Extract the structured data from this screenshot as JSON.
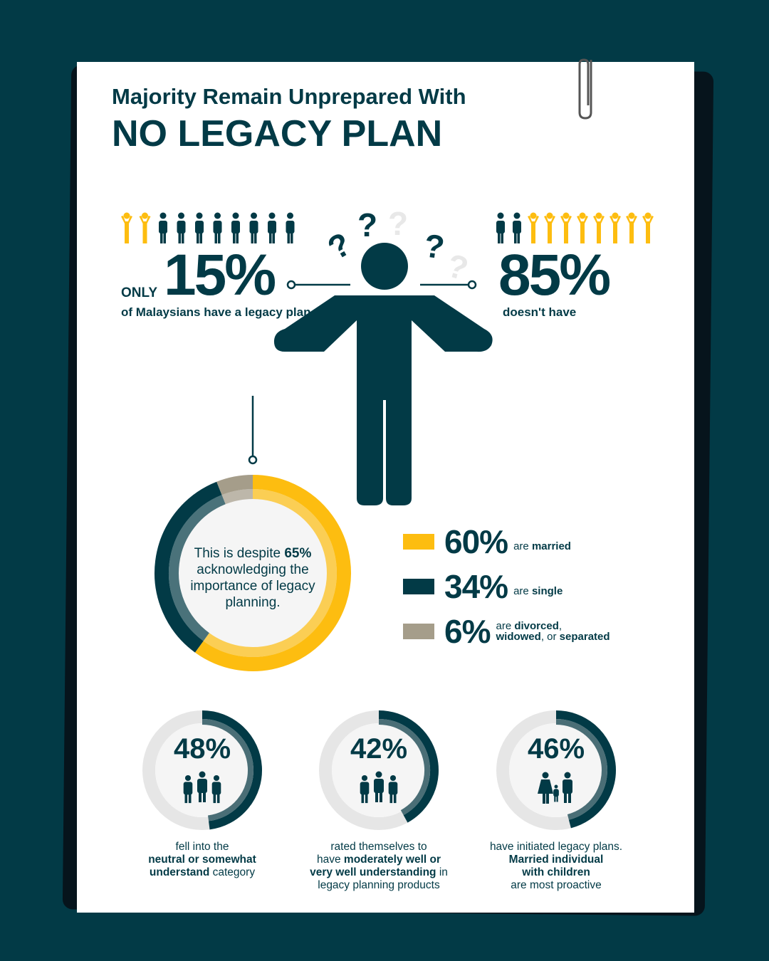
{
  "title": {
    "line1": "Majority Remain Unprepared With",
    "line2": "NO LEGACY PLAN"
  },
  "have": {
    "prefix": "ONLY",
    "value": "15%",
    "label": "of Malaysians have a legacy plan"
  },
  "dont_have": {
    "value": "85%",
    "label": "doesn't have"
  },
  "donut": {
    "text_pre": "This is despite ",
    "text_bold": "65%",
    "text_post": " acknowledging the importance of legacy planning."
  },
  "legend": [
    {
      "value": "60%",
      "pre": "are ",
      "bold": "married",
      "color": "#fdbd10"
    },
    {
      "value": "34%",
      "pre": "are ",
      "bold": "single",
      "color": "#023a46"
    },
    {
      "value": "6%",
      "pre": "are ",
      "bold": "divorced",
      "mid": ", ",
      "bold2": "widowed",
      "mid2": ", or ",
      "bold3": "separated",
      "color": "#a59d8a"
    }
  ],
  "stats": [
    {
      "value": "48%",
      "l1": "fell into the",
      "b1": "neutral or somewhat",
      "b2": "understand",
      "l3": " category",
      "icon": "group-icon"
    },
    {
      "value": "42%",
      "l1": "rated themselves to",
      "l2": "have ",
      "b1": "moderately well or",
      "b2": "very well understanding",
      "l3": " in",
      "l4": "legacy planning products",
      "icon": "group-icon"
    },
    {
      "value": "46%",
      "l1": "have initiated legacy plans.",
      "b1": "Married individual",
      "b2": "with children",
      "l4": "are most proactive",
      "icon": "family-icon"
    }
  ],
  "chart_data": [
    {
      "type": "pie",
      "title": "",
      "categories": [
        "married",
        "single",
        "divorced, widowed, or separated"
      ],
      "values": [
        60,
        34,
        6
      ],
      "colors": [
        "#fdbd10",
        "#023a46",
        "#a59d8a"
      ]
    },
    {
      "type": "bar",
      "categories": [
        "neutral or somewhat understand",
        "moderately well or very well understanding",
        "have initiated legacy plans"
      ],
      "values": [
        48,
        42,
        46
      ]
    },
    {
      "type": "pictogram",
      "values": {
        "have": 15,
        "dont_have": 85
      }
    }
  ],
  "colors": {
    "bg": "#023a46",
    "accent": "#fdbd10",
    "ring_bg": "#e6e6e6"
  }
}
